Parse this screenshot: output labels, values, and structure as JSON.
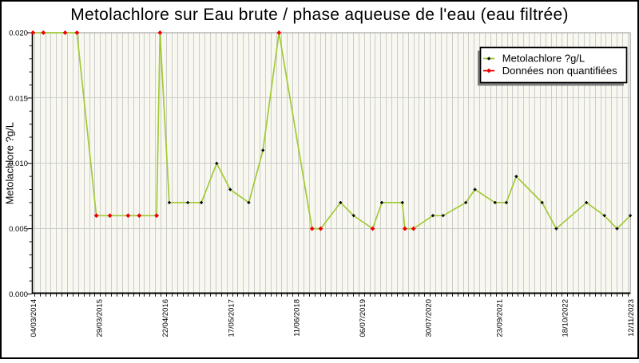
{
  "chart_data": {
    "type": "line",
    "title": "Metolachlore sur Eau brute / phase aqueuse de l'eau (eau filtrée)",
    "xlabel": "",
    "ylabel": "Metolachlore ?g/L",
    "ylim": [
      0.0,
      0.02
    ],
    "y_tick_labels": [
      "0.000",
      "0.005",
      "0.010",
      "0.015",
      "0.020"
    ],
    "y_major_tick_step": 0.005,
    "y_minor_tick_step": 0.001,
    "x_tick_labels": [
      "04/03/2014",
      "29/03/2015",
      "22/04/2016",
      "17/05/2017",
      "11/06/2018",
      "06/07/2019",
      "30/07/2020",
      "23/09/2021",
      "18/10/2022",
      "12/11/2023"
    ],
    "x_range": [
      "04/03/2014",
      "12/11/2023"
    ],
    "grid": {
      "x_minor_gridlines": true,
      "y_major_gridlines": true
    },
    "legend": {
      "position": "top-right",
      "entries": [
        {
          "label": "Metolachlore ?g/L",
          "marker": "black-plus-on-green-line"
        },
        {
          "label": "Données non quantifiées",
          "marker": "red-diamond-on-red-line"
        }
      ]
    },
    "series": [
      {
        "name": "Metolachlore ?g/L",
        "points": [
          {
            "date": "04/03/2014",
            "value": 0.02,
            "quantified": false
          },
          {
            "date": "05/05/2014",
            "value": 0.02,
            "quantified": false
          },
          {
            "date": "11/09/2014",
            "value": 0.02,
            "quantified": false
          },
          {
            "date": "20/11/2014",
            "value": 0.02,
            "quantified": false
          },
          {
            "date": "15/03/2015",
            "value": 0.006,
            "quantified": false
          },
          {
            "date": "03/06/2015",
            "value": 0.006,
            "quantified": false
          },
          {
            "date": "19/09/2015",
            "value": 0.006,
            "quantified": false
          },
          {
            "date": "24/11/2015",
            "value": 0.006,
            "quantified": false
          },
          {
            "date": "06/03/2016",
            "value": 0.006,
            "quantified": false
          },
          {
            "date": "26/03/2016",
            "value": 0.02,
            "quantified": false
          },
          {
            "date": "20/05/2016",
            "value": 0.007,
            "quantified": true
          },
          {
            "date": "07/09/2016",
            "value": 0.007,
            "quantified": true
          },
          {
            "date": "26/11/2016",
            "value": 0.007,
            "quantified": true
          },
          {
            "date": "25/02/2017",
            "value": 0.01,
            "quantified": true
          },
          {
            "date": "16/05/2017",
            "value": 0.008,
            "quantified": true
          },
          {
            "date": "03/09/2017",
            "value": 0.007,
            "quantified": true
          },
          {
            "date": "26/11/2017",
            "value": 0.011,
            "quantified": true
          },
          {
            "date": "01/03/2018",
            "value": 0.02,
            "quantified": false
          },
          {
            "date": "13/09/2018",
            "value": 0.005,
            "quantified": false
          },
          {
            "date": "03/11/2018",
            "value": 0.005,
            "quantified": false
          },
          {
            "date": "01/03/2019",
            "value": 0.007,
            "quantified": true
          },
          {
            "date": "17/05/2019",
            "value": 0.006,
            "quantified": true
          },
          {
            "date": "07/09/2019",
            "value": 0.005,
            "quantified": false
          },
          {
            "date": "31/10/2019",
            "value": 0.007,
            "quantified": true
          },
          {
            "date": "01/03/2020",
            "value": 0.007,
            "quantified": true
          },
          {
            "date": "16/03/2020",
            "value": 0.005,
            "quantified": false
          },
          {
            "date": "06/05/2020",
            "value": 0.005,
            "quantified": false
          },
          {
            "date": "29/08/2020",
            "value": 0.006,
            "quantified": true
          },
          {
            "date": "28/10/2020",
            "value": 0.006,
            "quantified": true
          },
          {
            "date": "12/03/2021",
            "value": 0.007,
            "quantified": true
          },
          {
            "date": "05/05/2021",
            "value": 0.008,
            "quantified": true
          },
          {
            "date": "01/09/2021",
            "value": 0.007,
            "quantified": true
          },
          {
            "date": "07/11/2021",
            "value": 0.007,
            "quantified": true
          },
          {
            "date": "05/01/2022",
            "value": 0.009,
            "quantified": true
          },
          {
            "date": "07/06/2022",
            "value": 0.007,
            "quantified": true
          },
          {
            "date": "30/08/2022",
            "value": 0.005,
            "quantified": true
          },
          {
            "date": "25/02/2023",
            "value": 0.007,
            "quantified": true
          },
          {
            "date": "11/06/2023",
            "value": 0.006,
            "quantified": true
          },
          {
            "date": "25/08/2023",
            "value": 0.005,
            "quantified": true
          },
          {
            "date": "12/11/2023",
            "value": 0.006,
            "quantified": true
          }
        ]
      }
    ],
    "colors": {
      "line_green": "#a2ca37",
      "non_quantified_red": "#ee0000",
      "plot_background": "#f8f8f0",
      "gridline_gray": "#cccccc",
      "frame_gray": "#aaaaaa",
      "axis_black": "#000000",
      "legend_shadow_gray": "#808080",
      "outer_border_black": "#000000"
    }
  }
}
